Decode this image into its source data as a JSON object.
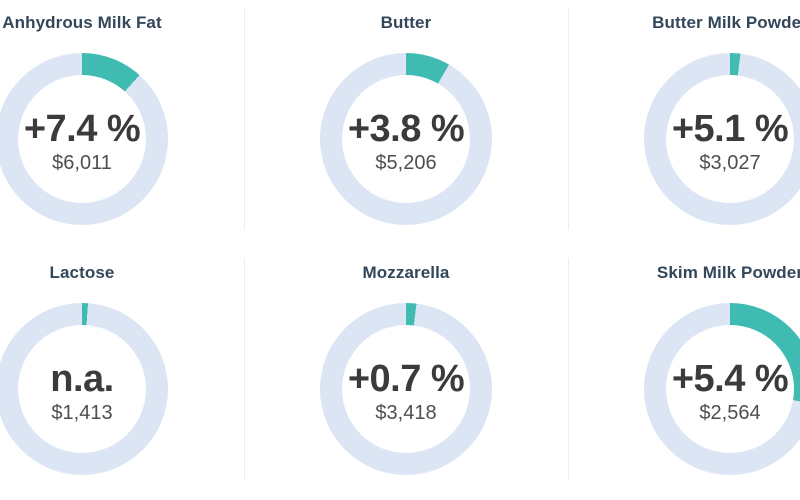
{
  "chart_data": {
    "type": "donut-grid",
    "description": "Grid of six donut gauge charts showing dairy commodity price change percentage and price in USD; teal arc drawn clockwise from 12 o'clock over a light blue ring",
    "colors": {
      "arc": "#3fbbb2",
      "ring": "#dbe5f4",
      "title_text": "#33475b",
      "change_text": "#3b3b3b",
      "price_text": "#4e4e4e",
      "divider": "#ededed",
      "background": "#ffffff"
    },
    "legend_position": "none",
    "grid": "3 columns x 2 visible rows, column dividers only",
    "donuts": [
      {
        "title": "Anhydrous Milk Fat",
        "change_label": "+7.4 %",
        "price_label": "$6,011",
        "change_pct": 7.4,
        "price_usd": 6011,
        "arc_deg": 42
      },
      {
        "title": "Butter",
        "change_label": "+3.8 %",
        "price_label": "$5,206",
        "change_pct": 3.8,
        "price_usd": 5206,
        "arc_deg": 30
      },
      {
        "title": "Butter Milk Powder",
        "change_label": "+5.1 %",
        "price_label": "$3,027",
        "change_pct": 5.1,
        "price_usd": 3027,
        "arc_deg": 7
      },
      {
        "title": "Lactose",
        "change_label": "n.a.",
        "price_label": "$1,413",
        "change_pct": null,
        "price_usd": 1413,
        "arc_deg": 4
      },
      {
        "title": "Mozzarella",
        "change_label": "+0.7 %",
        "price_label": "$3,418",
        "change_pct": 0.7,
        "price_usd": 3418,
        "arc_deg": 7
      },
      {
        "title": "Skim Milk Powder",
        "change_label": "+5.4 %",
        "price_label": "$2,564",
        "change_pct": 5.4,
        "price_usd": 2564,
        "arc_deg": 100
      }
    ]
  }
}
